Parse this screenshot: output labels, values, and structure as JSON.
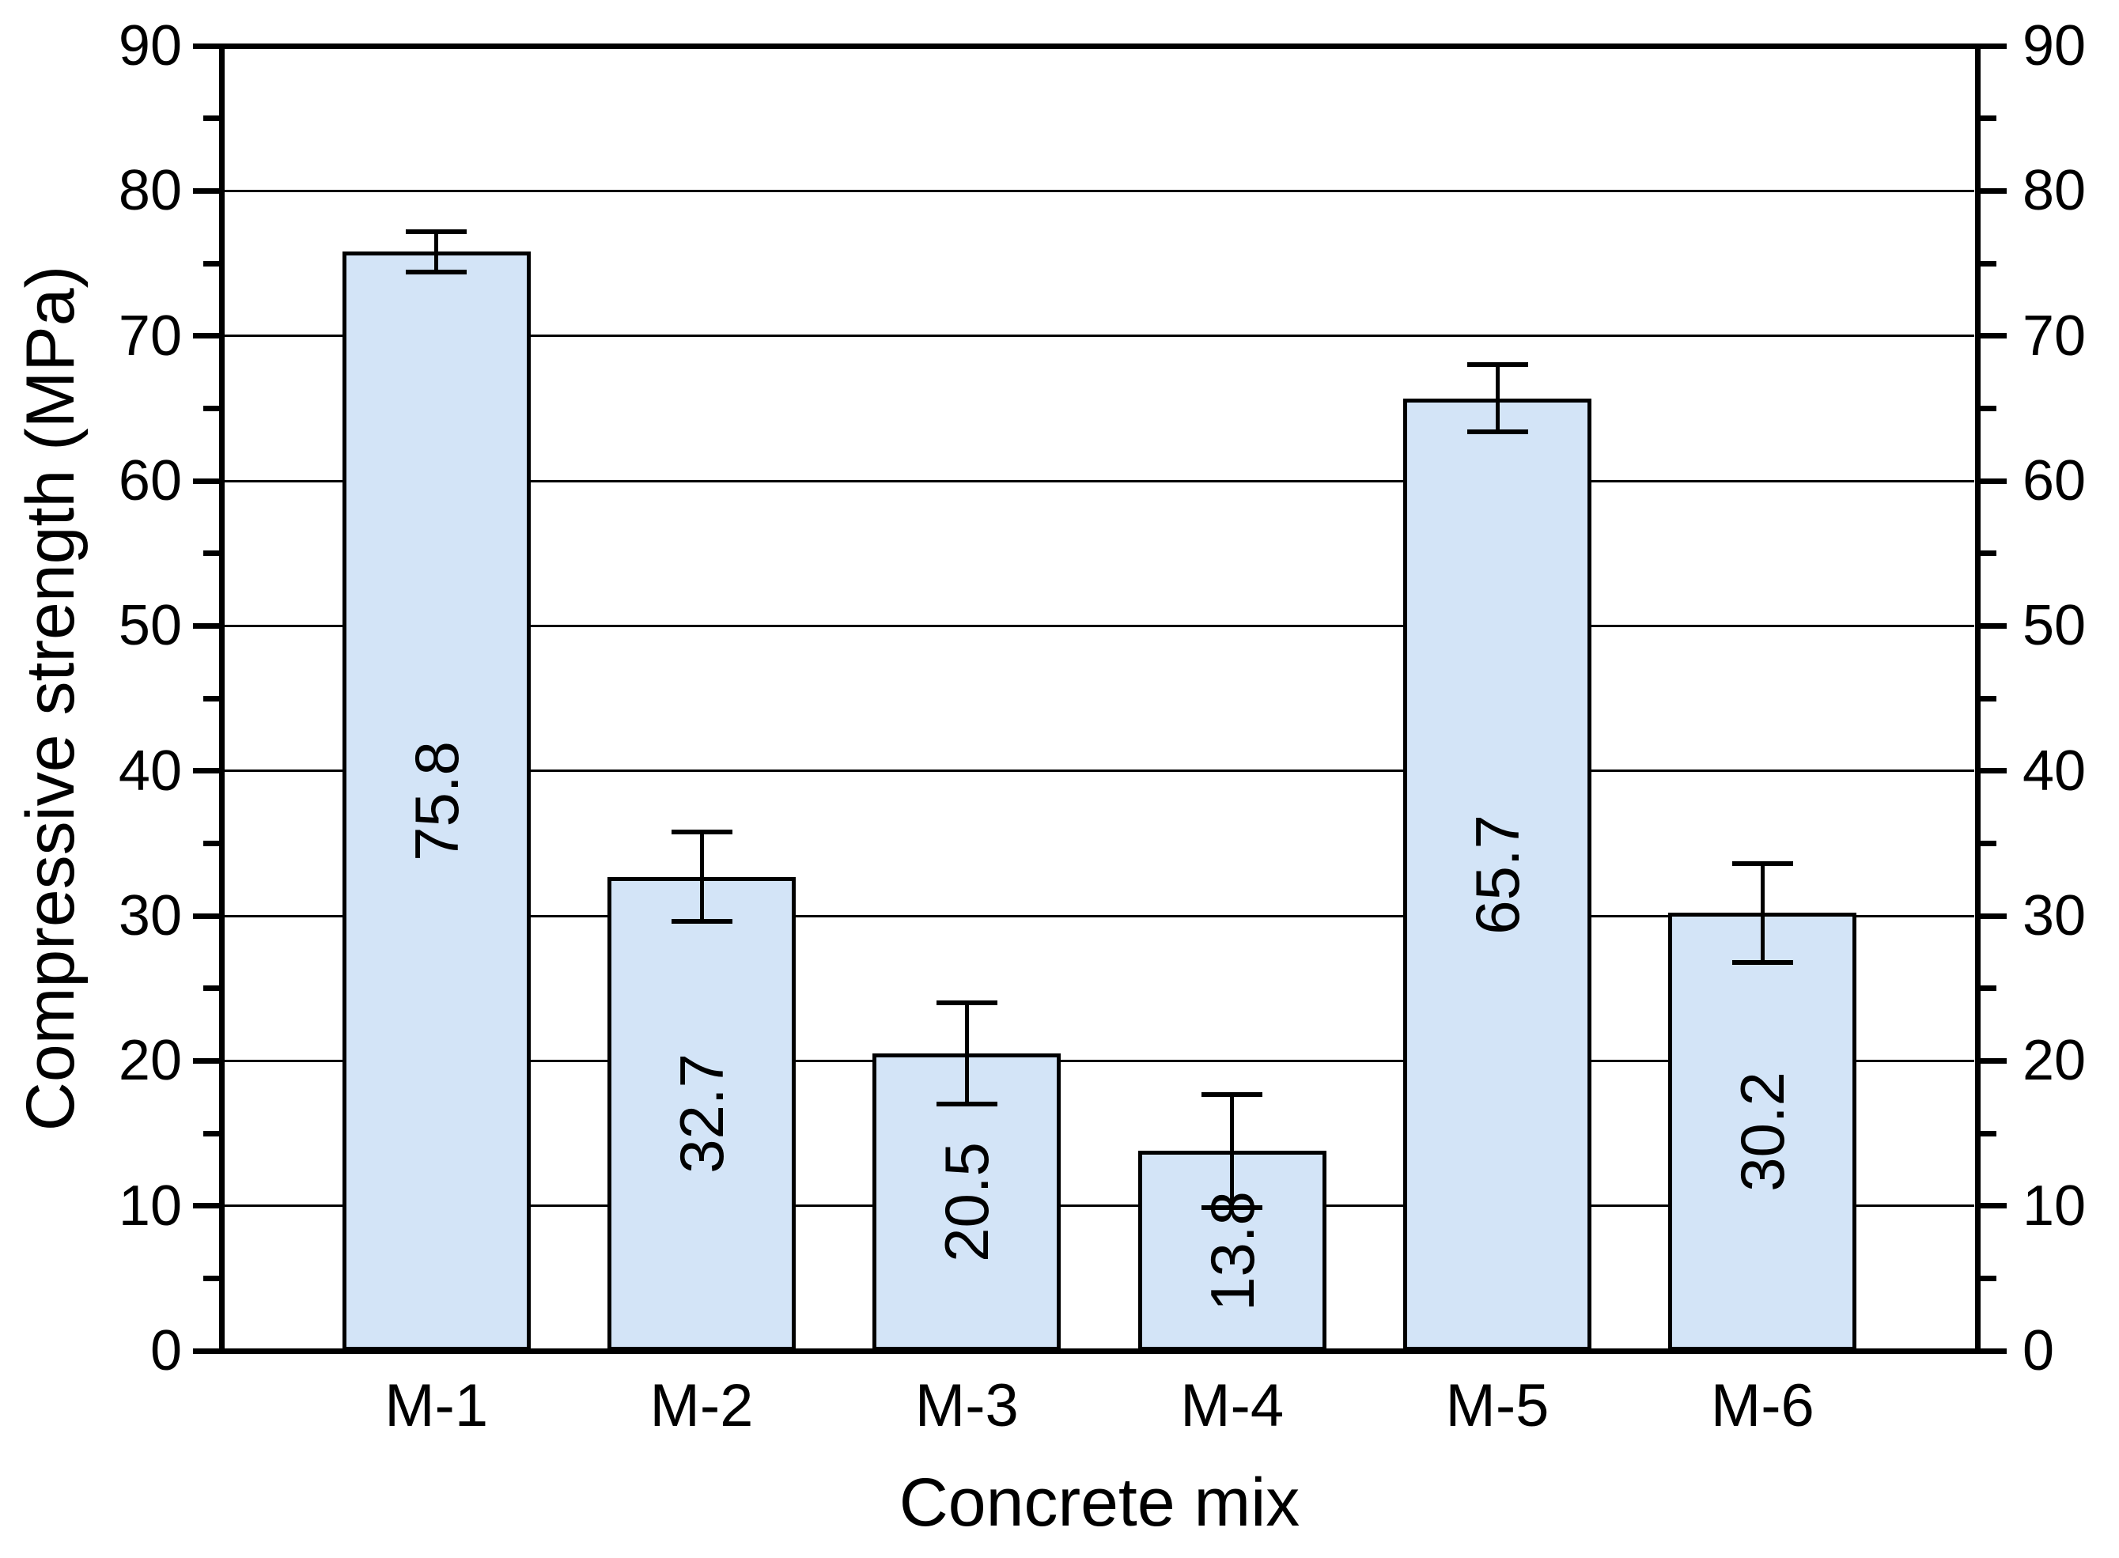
{
  "chart_data": {
    "type": "bar",
    "title": "",
    "categories": [
      "M-1",
      "M-2",
      "M-3",
      "M-4",
      "M-5",
      "M-6"
    ],
    "values": [
      75.8,
      32.7,
      20.5,
      13.8,
      65.7,
      30.2
    ],
    "value_labels": [
      "75.8",
      "32.7",
      "20.5",
      "13.8",
      "65.7",
      "30.2"
    ],
    "error_bars": [
      1.4,
      3.1,
      3.5,
      3.9,
      2.3,
      3.4
    ],
    "xlabel": "Concrete mix",
    "ylabel": "Compressive strength (MPa)",
    "ylim": [
      0,
      90
    ],
    "y_major_step": 10,
    "y_minor_step": 5,
    "y_tick_labels": [
      "0",
      "10",
      "20",
      "30",
      "40",
      "50",
      "60",
      "70",
      "80",
      "90"
    ],
    "right_axis_mirror": true,
    "grid": "horizontal-major",
    "legend": "none",
    "colors": {
      "bar_fill": "#d3e4f7",
      "line": "#000000",
      "background": "#ffffff"
    }
  }
}
